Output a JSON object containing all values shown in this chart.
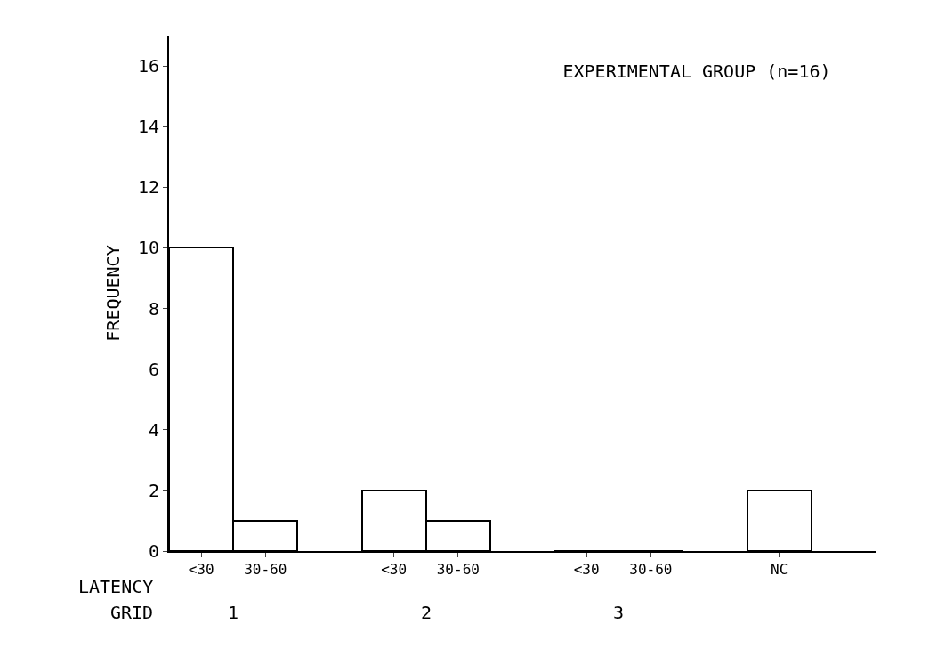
{
  "chart_data": {
    "type": "bar",
    "title": "EXPERIMENTAL GROUP (n=16)",
    "ylabel": "FREQUENCY",
    "categories": [
      "<30",
      "30-60",
      null,
      "<30",
      "30-60",
      null,
      "<30",
      "30-60",
      null,
      "NC"
    ],
    "values": [
      10,
      1,
      null,
      2,
      1,
      null,
      0,
      0,
      null,
      2
    ],
    "color": "#ffffff",
    "ylim": [
      0,
      17
    ],
    "yticks": [
      0,
      2,
      4,
      6,
      8,
      10,
      12,
      14,
      16
    ],
    "annotations": [
      "LATENCY",
      "GRID",
      "1",
      "2",
      "3"
    ]
  }
}
